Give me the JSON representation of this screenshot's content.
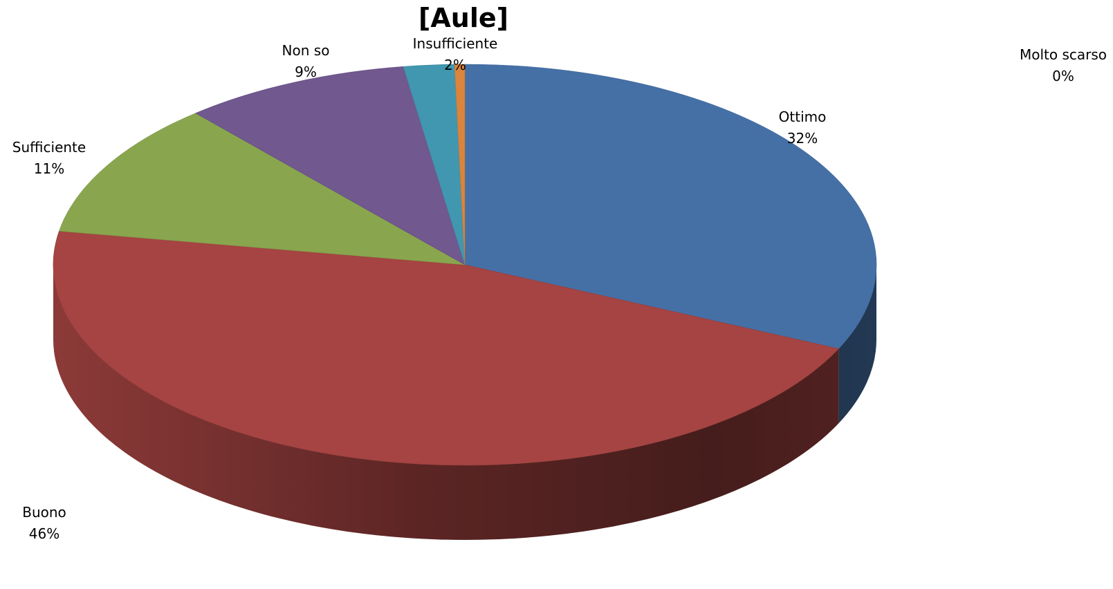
{
  "chart_data": {
    "type": "pie",
    "title": "[Aule]",
    "three_d": true,
    "slices": [
      {
        "label": "Ottimo",
        "value": 32,
        "percent_label": "32%",
        "color": "#4570A6"
      },
      {
        "label": "Buono",
        "value": 46,
        "percent_label": "46%",
        "color": "#A54442"
      },
      {
        "label": "Sufficiente",
        "value": 11,
        "percent_label": "11%",
        "color": "#89A64E"
      },
      {
        "label": "Non so",
        "value": 9,
        "percent_label": "9%",
        "color": "#71588F"
      },
      {
        "label": "Insufficiente",
        "value": 2,
        "percent_label": "2%",
        "color": "#4197AF"
      },
      {
        "label": "Molto scarso",
        "value": 0.4,
        "percent_label": "0%",
        "color": "#DB843D"
      }
    ]
  }
}
